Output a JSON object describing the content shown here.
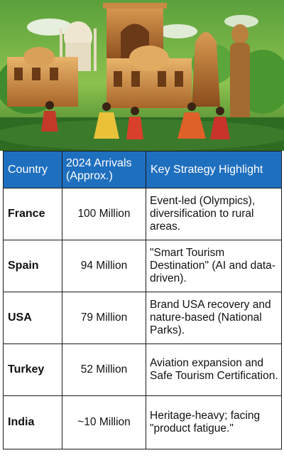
{
  "colors": {
    "header_bg": "#1f6fbf",
    "header_text": "#ffffff",
    "border": "#1a1a1a"
  },
  "banner": {
    "icon": "india-heritage-collage-image"
  },
  "table": {
    "headers": {
      "country": "Country",
      "arrivals": "2024 Arrivals (Approx.)",
      "strategy": "Key Strategy Highlight"
    },
    "rows": [
      {
        "country": "France",
        "arrivals": "100 Million",
        "strategy": "Event-led (Olympics), diversification to rural areas."
      },
      {
        "country": "Spain",
        "arrivals": "94 Million",
        "strategy": "\"Smart Tourism Destination\" (AI and data-driven)."
      },
      {
        "country": "USA",
        "arrivals": "79 Million",
        "strategy": "Brand USA recovery and nature-based (National Parks)."
      },
      {
        "country": "Turkey",
        "arrivals": "52 Million",
        "strategy": "Aviation expansion and Safe Tourism Certification."
      },
      {
        "country": "India",
        "arrivals": "~10 Million",
        "strategy": "Heritage-heavy; facing \"product fatigue.\""
      }
    ]
  }
}
